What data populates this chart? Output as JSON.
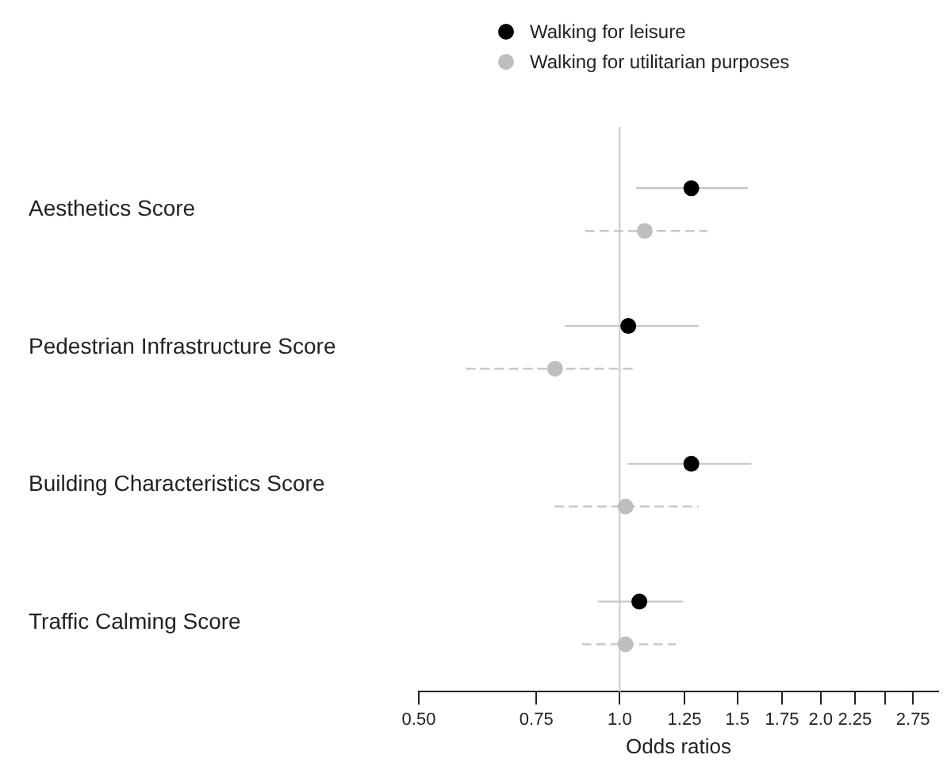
{
  "chart_data": {
    "type": "scatter",
    "xlabel": "Odds ratios",
    "log": "x",
    "categories": [
      "Aesthetics Score",
      "Pedestrian Infrastructure Score",
      "Building Characteristics Score",
      "Traffic Calming Score"
    ],
    "series": [
      {
        "name": "Walking for leisure",
        "color": "#000000",
        "values": [
          1.28,
          1.03,
          1.28,
          1.07
        ],
        "errors": [
          [
            1.06,
            1.55
          ],
          [
            0.83,
            1.31
          ],
          [
            1.03,
            1.57
          ],
          [
            0.93,
            1.24
          ]
        ],
        "line_style": "solid"
      },
      {
        "name": "Walking for utilitarian purposes",
        "color": "#bebebe",
        "values": [
          1.09,
          0.8,
          1.02,
          1.02
        ],
        "errors": [
          [
            0.89,
            1.35
          ],
          [
            0.59,
            1.06
          ],
          [
            0.8,
            1.31
          ],
          [
            0.88,
            1.21
          ]
        ],
        "line_style": "dashed"
      }
    ],
    "xlim": [
      0.5,
      3
    ],
    "xticks": [
      {
        "value": 0.5,
        "label": "0.50"
      },
      0.75,
      {
        "value": 1,
        "label": "1.0"
      },
      1.25,
      1.5,
      1.75,
      {
        "value": 2,
        "label": "2.0"
      },
      2.25,
      {
        "value": 2.5,
        "label": null
      },
      2.75
    ],
    "ref_lines": [
      {
        "axis": "x",
        "value": 1
      }
    ],
    "marker": "circle",
    "legend": "top",
    "grid": false,
    "orientation": "horizontal"
  }
}
